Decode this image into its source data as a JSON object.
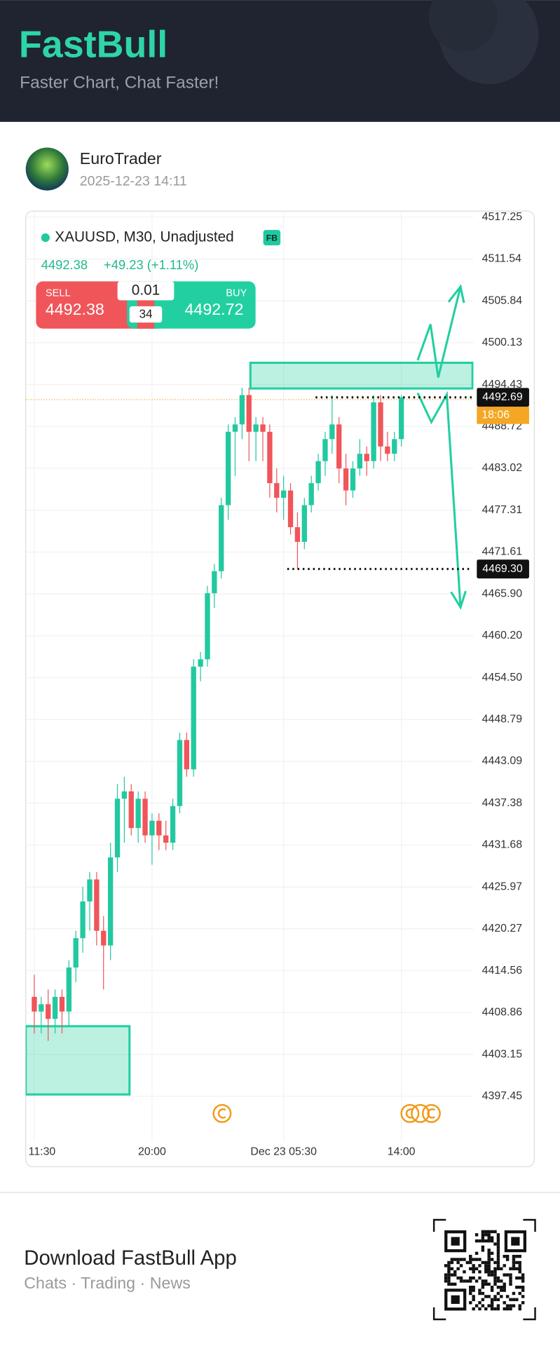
{
  "header": {
    "brand": "FastBull",
    "tagline": "Faster Chart, Chat Faster!"
  },
  "post": {
    "author": "EuroTrader",
    "timestamp": "2025-12-23 14:11"
  },
  "chart_data": {
    "type": "candlestick",
    "title": "XAUUSD, M30, Unadjusted",
    "badge": "FB",
    "last_price": 4492.38,
    "change": "+49.23 (+1.11%)",
    "trade": {
      "sell_label": "SELL",
      "sell_price": "4492.38",
      "lot": "0.01",
      "spread": "34",
      "buy_label": "BUY",
      "buy_price": "4492.72"
    },
    "categories": [
      "22 11:30",
      null,
      null,
      null,
      null,
      null,
      null,
      null,
      null,
      null,
      null,
      null,
      null,
      null,
      null,
      null,
      null,
      "20:00",
      null,
      null,
      null,
      null,
      null,
      null,
      null,
      null,
      null,
      null,
      null,
      null,
      null,
      null,
      null,
      null,
      null,
      null,
      "Dec 23 05:30",
      null,
      null,
      null,
      null,
      null,
      null,
      null,
      null,
      null,
      null,
      null,
      null,
      null,
      null,
      null,
      null,
      "14:00"
    ],
    "open": [
      4411,
      4409,
      4410,
      4408,
      4411,
      4409,
      4415,
      4419,
      4424,
      4427,
      4420,
      4418,
      4430,
      4438,
      4439,
      4434,
      4438,
      4433,
      4435,
      4433,
      4432,
      4437,
      4446,
      4442,
      4456,
      4457,
      4466,
      4469,
      4478,
      4488,
      4489,
      4493,
      4488,
      4489,
      4488,
      4481,
      4479,
      4480,
      4475,
      4473,
      4478,
      4481,
      4484,
      4487,
      4489,
      4483,
      4480,
      4483,
      4485,
      4484,
      4492,
      4486,
      4485,
      4487
    ],
    "high": [
      4414,
      4411,
      4412,
      4412,
      4412,
      4416,
      4420,
      4426,
      4428,
      4428,
      4422,
      4432,
      4440,
      4441,
      4440,
      4439,
      4439,
      4436,
      4436,
      4435,
      4438,
      4447,
      4447,
      4457,
      4458,
      4467,
      4470,
      4479,
      4489,
      4490,
      4494,
      4494,
      4490,
      4490,
      4489,
      4483,
      4482,
      4481,
      4477,
      4479,
      4482,
      4485,
      4488,
      4493,
      4490,
      4485,
      4484,
      4487,
      4486,
      4493,
      4493,
      4488,
      4488,
      4493
    ],
    "low": [
      4406,
      4406,
      4405,
      4406,
      4406,
      4407,
      4413,
      4417,
      4420,
      4418,
      4412,
      4416,
      4428,
      4432,
      4433,
      4432,
      4432,
      4429,
      4431,
      4431,
      4431,
      4436,
      4441,
      4441,
      4454,
      4456,
      4464,
      4468,
      4476,
      4482,
      4487,
      4484,
      4484,
      4484,
      4479,
      4477,
      4476,
      4474,
      4469.3,
      4472,
      4477,
      4480,
      4482,
      4485,
      4481,
      4478,
      4479,
      4482,
      4482,
      4483,
      4484,
      4484,
      4484,
      4486
    ],
    "close": [
      4409,
      4410,
      4408,
      4411,
      4409,
      4415,
      4419,
      4424,
      4427,
      4420,
      4418,
      4430,
      4438,
      4439,
      4434,
      4438,
      4433,
      4435,
      4433,
      4432,
      4437,
      4446,
      4442,
      4456,
      4457,
      4466,
      4469,
      4478,
      4488,
      4489,
      4493,
      4488,
      4489,
      4488,
      4481,
      4479,
      4480,
      4475,
      4473,
      4478,
      4481,
      4484,
      4487,
      4489,
      4483,
      4480,
      4483,
      4485,
      4484,
      4492,
      4486,
      4485,
      4487,
      4492.69
    ],
    "up_color": "#22c9a0",
    "down_color": "#f0555a",
    "ylim": [
      4391.37,
      4518.07
    ],
    "yticks": [
      4397.45,
      4403.15,
      4408.86,
      4414.56,
      4420.27,
      4425.97,
      4431.68,
      4437.38,
      4443.09,
      4448.79,
      4454.5,
      4460.2,
      4465.9,
      4471.61,
      4477.31,
      4483.02,
      4488.72,
      4494.43,
      4500.13,
      4505.84,
      4511.54,
      4517.25
    ],
    "ytick_labels": [
      "4397.45",
      "4403.15",
      "4408.86",
      "4414.56",
      "4420.27",
      "4425.97",
      "4431.68",
      "4437.38",
      "4443.09",
      "4448.79",
      "4454.50",
      "4460.20",
      "4465.90",
      "4471.61",
      "4477.31",
      "4483.02",
      "4488.72",
      "4494.43",
      "4500.13",
      "4505.84",
      "4511.54",
      "4517.25"
    ],
    "grid": true,
    "price_labels": [
      4492.69,
      {
        "value": 4469.3,
        "label": "4469.30"
      }
    ],
    "countdown": "18:06",
    "zones": [
      {
        "from": 4493.9,
        "to": 4497.4
      },
      {
        "from": 4397.7,
        "to": 4407.0
      }
    ]
  },
  "footer": {
    "title": "Download FastBull App",
    "subtitle": "Chats · Trading · News"
  }
}
